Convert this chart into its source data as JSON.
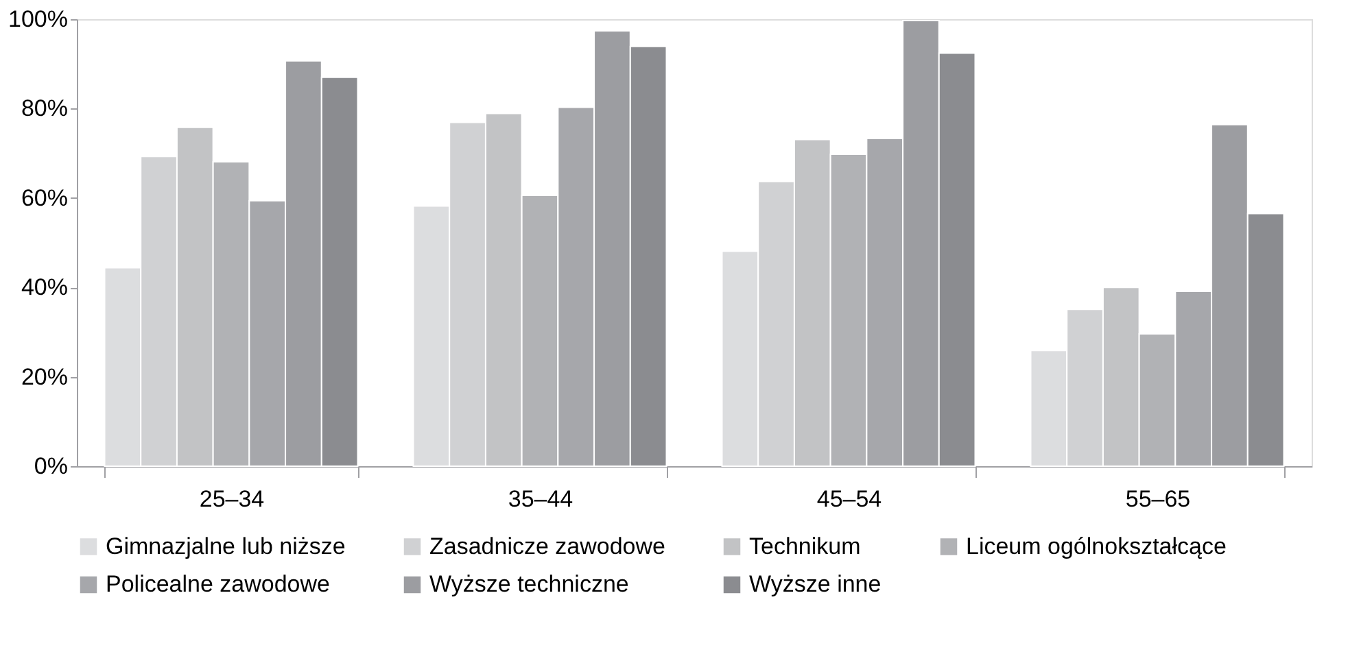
{
  "chart_data": {
    "type": "bar",
    "categories": [
      "25–34",
      "35–44",
      "45–54",
      "55–65"
    ],
    "series": [
      {
        "name": "Gimnazjalne lub niższe",
        "color": "#dcdddf",
        "values": [
          44.4,
          58.2,
          48.1,
          25.9
        ]
      },
      {
        "name": "Zasadnicze zawodowe",
        "color": "#d0d1d3",
        "values": [
          69.3,
          76.9,
          63.7,
          35.1
        ]
      },
      {
        "name": "Technikum",
        "color": "#c2c3c5",
        "values": [
          75.8,
          78.9,
          73.1,
          40.0
        ]
      },
      {
        "name": "Liceum ogólnokształcące",
        "color": "#b1b2b5",
        "values": [
          68.1,
          60.6,
          69.8,
          29.6
        ]
      },
      {
        "name": "Policealne zawodowe",
        "color": "#a6a7ab",
        "values": [
          59.4,
          80.3,
          73.3,
          39.1
        ]
      },
      {
        "name": "Wyższe techniczne",
        "color": "#9c9da1",
        "values": [
          90.7,
          97.4,
          99.7,
          76.4
        ]
      },
      {
        "name": "Wyższe inne",
        "color": "#8b8c90",
        "values": [
          87.0,
          93.9,
          92.4,
          56.5
        ]
      }
    ],
    "ylim": [
      0,
      100
    ],
    "yticks": [
      {
        "value": 0,
        "label": "0%"
      },
      {
        "value": 20,
        "label": "20%"
      },
      {
        "value": 40,
        "label": "40%"
      },
      {
        "value": 60,
        "label": "60%"
      },
      {
        "value": 80,
        "label": "80%"
      },
      {
        "value": 100,
        "label": "100%"
      }
    ],
    "grid": false,
    "legend": "bottom"
  }
}
